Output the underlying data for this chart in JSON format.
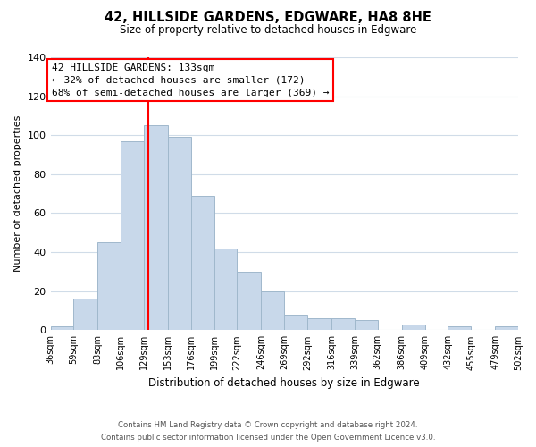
{
  "title": "42, HILLSIDE GARDENS, EDGWARE, HA8 8HE",
  "subtitle": "Size of property relative to detached houses in Edgware",
  "xlabel": "Distribution of detached houses by size in Edgware",
  "ylabel": "Number of detached properties",
  "bar_edges": [
    36,
    59,
    83,
    106,
    129,
    153,
    176,
    199,
    222,
    246,
    269,
    292,
    316,
    339,
    362,
    386,
    409,
    432,
    455,
    479,
    502
  ],
  "bar_heights": [
    2,
    16,
    45,
    97,
    105,
    99,
    69,
    42,
    30,
    20,
    8,
    6,
    6,
    5,
    0,
    3,
    0,
    2,
    0,
    2
  ],
  "bar_color": "#c8d8ea",
  "bar_edgecolor": "#a0b8cc",
  "vline_x": 133,
  "vline_color": "red",
  "ylim": [
    0,
    140
  ],
  "yticks": [
    0,
    20,
    40,
    60,
    80,
    100,
    120,
    140
  ],
  "tick_labels": [
    "36sqm",
    "59sqm",
    "83sqm",
    "106sqm",
    "129sqm",
    "153sqm",
    "176sqm",
    "199sqm",
    "222sqm",
    "246sqm",
    "269sqm",
    "292sqm",
    "316sqm",
    "339sqm",
    "362sqm",
    "386sqm",
    "409sqm",
    "432sqm",
    "455sqm",
    "479sqm",
    "502sqm"
  ],
  "annotation_title": "42 HILLSIDE GARDENS: 133sqm",
  "annotation_line1": "← 32% of detached houses are smaller (172)",
  "annotation_line2": "68% of semi-detached houses are larger (369) →",
  "annotation_box_color": "#ffffff",
  "annotation_box_edgecolor": "red",
  "footer1": "Contains HM Land Registry data © Crown copyright and database right 2024.",
  "footer2": "Contains public sector information licensed under the Open Government Licence v3.0.",
  "background_color": "#ffffff",
  "grid_color": "#d0dce8"
}
